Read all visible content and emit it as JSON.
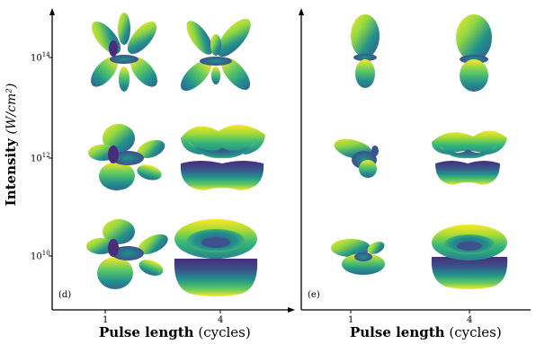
{
  "figure": {
    "y_label_main": "Intensity",
    "y_label_unit": "(W/cm²)",
    "y_ticks": [
      "10",
      "10",
      "10"
    ],
    "y_tick_exponents": [
      "14",
      "12",
      "10"
    ],
    "panels": [
      {
        "label": "(d)",
        "x_categories": [
          "1",
          "4"
        ],
        "x_label_main": "Pulse length",
        "x_label_unit": "(cycles)"
      },
      {
        "label": "(e)",
        "x_categories": [
          "1",
          "4"
        ],
        "x_label_main": "Pulse length",
        "x_label_unit": "(cycles)"
      }
    ],
    "colormap": [
      "#440154",
      "#3b528b",
      "#21918c",
      "#5ec962",
      "#fde725"
    ]
  }
}
